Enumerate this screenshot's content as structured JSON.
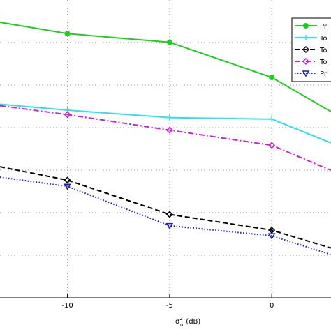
{
  "chart_data": {
    "type": "line",
    "xlabel_base": "σ",
    "xlabel_sup": "2",
    "xlabel_sub": "n",
    "xlabel_unit": "(dB)",
    "x_ticks": [
      "-10",
      "-5",
      "0"
    ],
    "xlim": [
      -13.3,
      2.9
    ],
    "ylim": [
      0,
      1
    ],
    "grid": true,
    "legend_position": "top-right",
    "series": [
      {
        "name": "Pr",
        "color": "#22cc22",
        "dash": "solid",
        "marker": "circle",
        "x": [
          -13.3,
          -10,
          -5,
          0,
          2.9
        ],
        "y": [
          0.925,
          0.887,
          0.858,
          0.74,
          0.625
        ]
      },
      {
        "name": "To",
        "color": "#33ddee",
        "dash": "solid",
        "marker": "plus",
        "x": [
          -13.3,
          -10,
          -5,
          0,
          2.9
        ],
        "y": [
          0.65,
          0.63,
          0.605,
          0.6,
          0.52
        ]
      },
      {
        "name": "To",
        "color": "#000000",
        "dash": "dashed",
        "marker": "diamond",
        "x": [
          -13.3,
          -10,
          -5,
          0,
          2.9
        ],
        "y": [
          0.44,
          0.395,
          0.28,
          0.227,
          0.167
        ]
      },
      {
        "name": "To",
        "color": "#cc22cc",
        "dash": "dashdot",
        "marker": "diamond",
        "x": [
          -13.3,
          -10,
          -5,
          0,
          2.9
        ],
        "y": [
          0.645,
          0.615,
          0.563,
          0.512,
          0.428
        ]
      },
      {
        "name": "Pr",
        "color": "#1a1acc",
        "dash": "dotted",
        "marker": "triangle-down",
        "x": [
          -13.3,
          -10,
          -5,
          0,
          2.9
        ],
        "y": [
          0.405,
          0.374,
          0.242,
          0.208,
          0.145
        ]
      }
    ]
  }
}
